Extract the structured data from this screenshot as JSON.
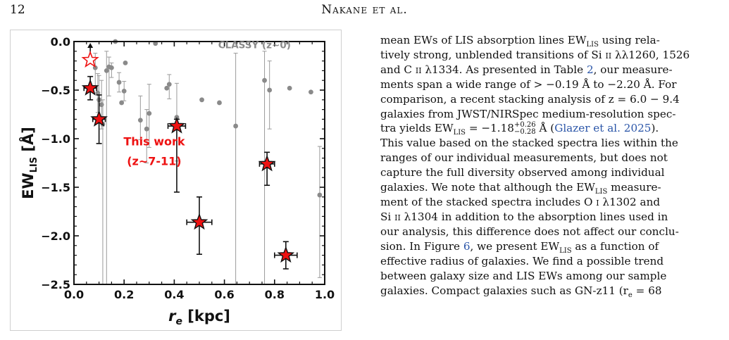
{
  "header": {
    "page_number": "12",
    "running_head": "Nakane et al."
  },
  "figure": {
    "chart_data": {
      "type": "scatter",
      "xlabel": "r_e [kpc]",
      "ylabel": "EW_LIS [Å]",
      "xlim": [
        0.0,
        1.0
      ],
      "ylim": [
        -2.5,
        0.0
      ],
      "x_ticks": [
        "0.0",
        "0.2",
        "0.4",
        "0.6",
        "0.8",
        "1.0"
      ],
      "y_ticks": [
        "0.0",
        "−0.5",
        "−1.0",
        "−1.5",
        "−2.0",
        "−2.5"
      ],
      "grid": false,
      "annotations": {
        "classy_label": "CLASSY (z~0)",
        "this_work_line1": "This work",
        "this_work_line2": "(z~7-11)"
      },
      "series": [
        {
          "name": "CLASSY (z~0)",
          "color": "#8a8a8a",
          "marker": "circle",
          "points": [
            {
              "x": 0.085,
              "y": -0.27,
              "yerr_low": 0.2,
              "yerr_high": 0.15
            },
            {
              "x": 0.095,
              "y": -0.53,
              "yerr_low": 0.2,
              "yerr_high": 0.2
            },
            {
              "x": 0.1,
              "y": -0.6,
              "yerr_low": 0.45,
              "yerr_high": 0.25
            },
            {
              "x": 0.11,
              "y": -0.65,
              "yerr_low": 0.25,
              "yerr_high": 0.25
            },
            {
              "x": 0.115,
              "y": -0.85,
              "yerr_low": 1.65,
              "yerr_high": 0.25
            },
            {
              "x": 0.13,
              "y": -0.3,
              "yerr_low": 2.2,
              "yerr_high": 0.2
            },
            {
              "x": 0.14,
              "y": -0.26,
              "yerr_low": 0.3,
              "yerr_high": 0.1
            },
            {
              "x": 0.15,
              "y": -0.27,
              "yerr_low": 0.1,
              "yerr_high": 0.05
            },
            {
              "x": 0.165,
              "y": 0.0
            },
            {
              "x": 0.18,
              "y": -0.42,
              "yerr_low": 0.1,
              "yerr_high": 0.1
            },
            {
              "x": 0.19,
              "y": -0.63
            },
            {
              "x": 0.2,
              "y": -0.51,
              "yerr_low": 0.1,
              "yerr_high": 0.1
            },
            {
              "x": 0.205,
              "y": -0.22
            },
            {
              "x": 0.265,
              "y": -0.81,
              "yerr_low": 0.2,
              "yerr_high": 0.25
            },
            {
              "x": 0.29,
              "y": -0.9,
              "yerr_low": 0.35,
              "yerr_high": 0.2
            },
            {
              "x": 0.3,
              "y": -0.74,
              "yerr_low": 0.35,
              "yerr_high": 0.3
            },
            {
              "x": 0.325,
              "y": -0.02
            },
            {
              "x": 0.37,
              "y": -0.48
            },
            {
              "x": 0.38,
              "y": -0.44,
              "yerr_low": 0.15,
              "yerr_high": 0.1
            },
            {
              "x": 0.41,
              "y": -0.78,
              "yerr_low": 0.45,
              "yerr_high": 0.35
            },
            {
              "x": 0.51,
              "y": -0.6
            },
            {
              "x": 0.58,
              "y": -0.63
            },
            {
              "x": 0.645,
              "y": -0.87,
              "yerr_low": 1.7,
              "yerr_high": 0.75
            },
            {
              "x": 0.76,
              "y": -0.4,
              "yerr_low": 2.1,
              "yerr_high": 0.3
            },
            {
              "x": 0.78,
              "y": -0.5,
              "yerr_low": 0.4,
              "yerr_high": 0.3
            },
            {
              "x": 0.86,
              "y": -0.48
            },
            {
              "x": 0.945,
              "y": -0.52
            },
            {
              "x": 0.98,
              "y": -1.58,
              "yerr_low": 0.85,
              "yerr_high": 0.5
            }
          ]
        },
        {
          "name": "This work (z~7-11)",
          "color": "#ee1111",
          "marker": "star",
          "points": [
            {
              "x": 0.065,
              "y": -0.48,
              "xerr": 0.025,
              "yerr_low": 0.12,
              "yerr_high": 0.12
            },
            {
              "x": 0.1,
              "y": -0.8,
              "xerr": 0.025,
              "yerr_low": 0.25,
              "yerr_high": 0.25
            },
            {
              "x": 0.41,
              "y": -0.87,
              "xerr": 0.035,
              "yerr_low": 0.68,
              "yerr_high": 0.07
            },
            {
              "x": 0.5,
              "y": -1.86,
              "xerr": 0.05,
              "yerr_low": 0.33,
              "yerr_high": 0.26
            },
            {
              "x": 0.77,
              "y": -1.26,
              "xerr": 0.03,
              "yerr_low": 0.22,
              "yerr_high": 0.12
            },
            {
              "x": 0.845,
              "y": -2.2,
              "xerr": 0.045,
              "yerr_low": 0.14,
              "yerr_high": 0.14
            }
          ],
          "lower_limits": [
            {
              "x": 0.065,
              "y": -0.19
            }
          ]
        }
      ]
    }
  },
  "text": {
    "l1": "mean EWs of LIS absorption lines EW",
    "l1_sub": "LIS",
    "l1_b": " using rela-",
    "l2": "tively strong, unblended transitions of Si ",
    "l2_sc": "ii",
    "l2_b": " λλ1260, 1526",
    "l3": "and C ",
    "l3_sc": "ii",
    "l3_b": " λ1334.  As presented in Table ",
    "l3_ref": "2",
    "l3_c": ", our measure-",
    "l4": "ments span a wide range of > −0.19 Å to −2.20 Å. For",
    "l5": "comparison, a recent stacking analysis of z = 6.0 − 9.4",
    "l6": "galaxies from JWST/NIRSpec medium-resolution spec-",
    "l7a": "tra yields EW",
    "l7_sub": "LIS",
    "l7b": " = −1.18",
    "l7_sup": "+0.26",
    "l7_sub2": "−0.28",
    "l7c": " Å (",
    "l7_cite": "Glazer et al. 2025",
    "l7d": ").",
    "l8": "This value based on the stacked spectra lies within the",
    "l9": "ranges of our individual measurements, but does not",
    "l10": "capture the full diversity observed among individual",
    "l11a": "galaxies.  We note that although the EW",
    "l11_sub": "LIS",
    "l11b": " measure-",
    "l12": "ment of the stacked spectra includes O ",
    "l12_sc": "i",
    "l12_b": " λ1302 and",
    "l13": "Si ",
    "l13_sc": "ii",
    "l13_b": " λ1304 in addition to the absorption lines used in",
    "l14": "our analysis, this difference does not affect our conclu-",
    "l15a": "sion.  In Figure ",
    "l15_ref": "6",
    "l15b": ", we present EW",
    "l15_sub": "LIS",
    "l15c": " as a function of",
    "l16": "effective radius of galaxies.  We find a possible trend",
    "l17": "between galaxy size and LIS EWs among our sample",
    "l18": "galaxies.  Compact galaxies such as GN-z11 (r",
    "l18_sub": "e",
    "l18_b": " = 68"
  }
}
